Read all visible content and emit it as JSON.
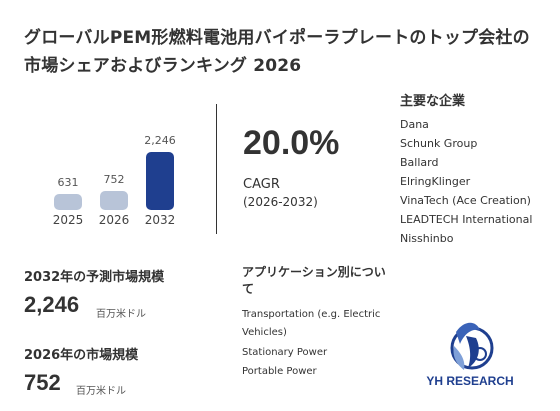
{
  "title": "グローバルPEM形燃料電池用バイポーラプレートのトップ会社の市場シェアおよびランキング 2026",
  "chart_data": {
    "type": "bar",
    "categories": [
      "2025",
      "2026",
      "2032"
    ],
    "values": [
      631,
      752,
      2246
    ],
    "value_labels": [
      "631",
      "752",
      "2,246"
    ],
    "colors": [
      "#b8c4d8",
      "#b8c4d8",
      "#1f3f8f"
    ]
  },
  "cagr": {
    "value": "20.0%",
    "label": "CAGR",
    "period": "(2026-2032)"
  },
  "companies": {
    "title": "主要な企業",
    "items": [
      "Dana",
      "Schunk Group",
      "Ballard",
      "ElringKlinger",
      "VinaTech (Ace Creation)",
      "LEADTECH International",
      "Nisshinbo"
    ]
  },
  "market": {
    "forecast_label": "2032年の予測市場規模",
    "forecast_value": "2,246",
    "forecast_unit": "百万米ドル",
    "current_label": "2026年の市場規模",
    "current_value": "752",
    "current_unit": "百万米ドル"
  },
  "applications": {
    "title": "アプリケーション別について",
    "items": [
      "Transportation (e.g. Electric Vehicles)",
      "Stationary Power",
      "Portable Power"
    ]
  },
  "logo": {
    "text": "YH RESEARCH",
    "color": "#1f3f8f"
  }
}
